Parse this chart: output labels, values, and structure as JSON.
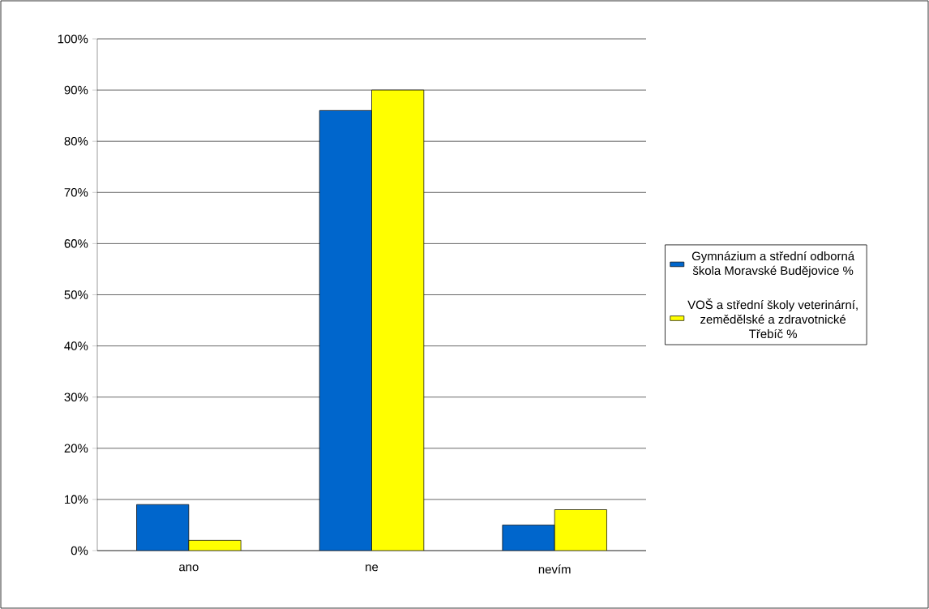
{
  "chart_data": {
    "type": "bar",
    "categories": [
      "ano",
      "ne",
      "nevím"
    ],
    "series": [
      {
        "name": "Gymnázium a střední odborná škola Moravské Budějovice %",
        "color": "#0066cc",
        "values": [
          9,
          86,
          5
        ]
      },
      {
        "name": "VOŠ a střední školy veterinární, zemědělské a zdravotnické Třebíč %",
        "color": "#ffff00",
        "values": [
          2,
          90,
          8
        ]
      }
    ],
    "ylim": [
      0,
      100
    ],
    "yticks": [
      {
        "value": 0,
        "label": "0%"
      },
      {
        "value": 10,
        "label": "10%"
      },
      {
        "value": 20,
        "label": "20%"
      },
      {
        "value": 30,
        "label": "30%"
      },
      {
        "value": 40,
        "label": "40%"
      },
      {
        "value": 50,
        "label": "50%"
      },
      {
        "value": 60,
        "label": "60%"
      },
      {
        "value": 70,
        "label": "70%"
      },
      {
        "value": 80,
        "label": "80%"
      },
      {
        "value": 90,
        "label": "90%"
      },
      {
        "value": 100,
        "label": "100%"
      }
    ],
    "grid": "y",
    "legend": "right"
  }
}
